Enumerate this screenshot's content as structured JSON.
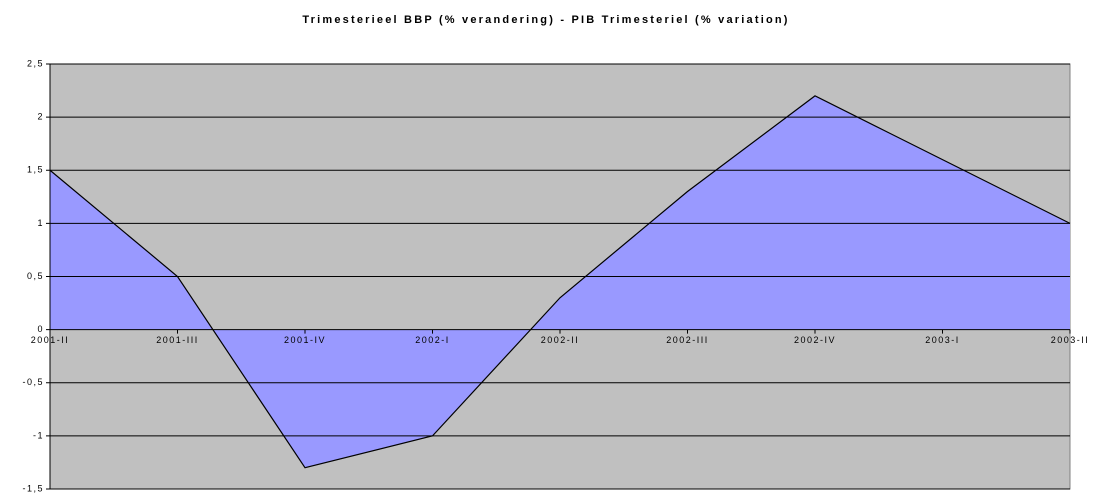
{
  "chart_data": {
    "type": "area",
    "title": "Trimesterieel BBP (% verandering) - PIB Trimesteriel (% variation)",
    "categories": [
      "2001-II",
      "2001-III",
      "2001-IV",
      "2002-I",
      "2002-II",
      "2002-III",
      "2002-IV",
      "2003-I",
      "2003-II"
    ],
    "values": [
      1.5,
      0.5,
      -1.3,
      -1.0,
      0.3,
      1.3,
      2.2,
      1.6,
      1.0
    ],
    "color": "#9999ff",
    "line_color": "#000000",
    "background": "#c0c0c0",
    "ylim": [
      -1.5,
      2.5
    ],
    "yticks": [
      {
        "value": -1.5,
        "label": "-1,5"
      },
      -1,
      {
        "value": -0.5,
        "label": "-0,5"
      },
      0,
      {
        "value": 0.5,
        "label": "0,5"
      },
      1,
      {
        "value": 1.5,
        "label": "1,5"
      },
      2,
      {
        "value": 2.5,
        "label": "2,5"
      }
    ],
    "grid": true
  }
}
